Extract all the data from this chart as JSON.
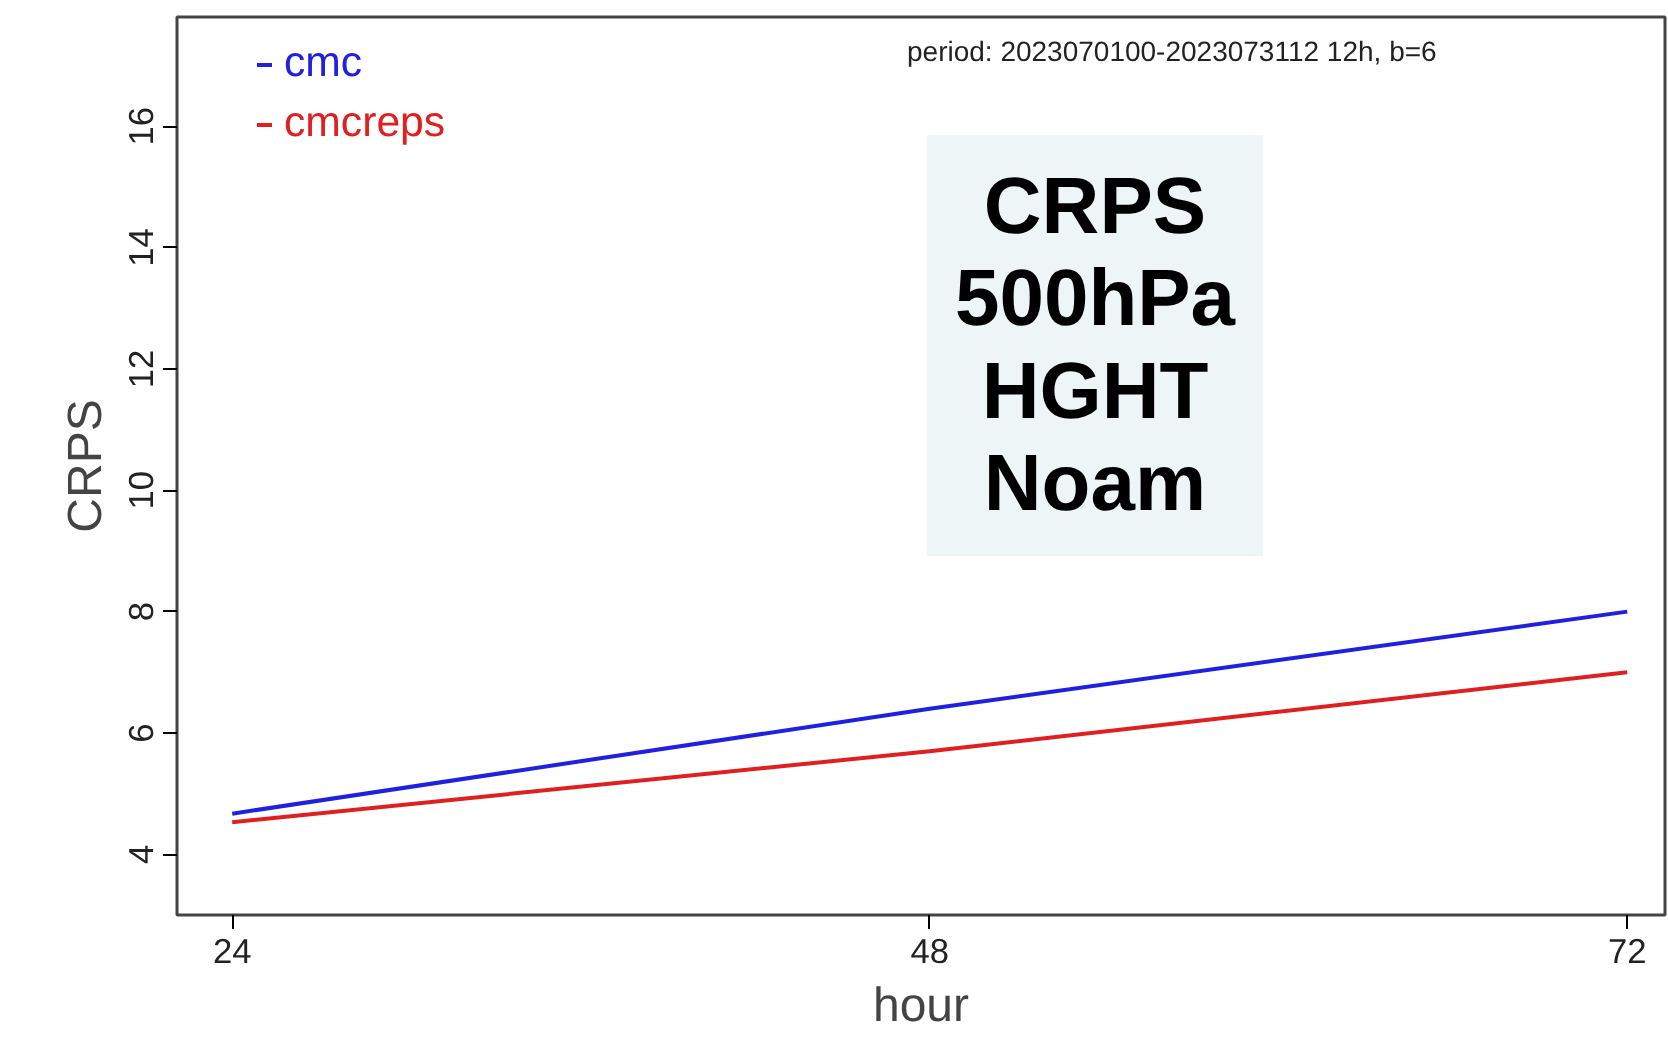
{
  "chart_data": {
    "type": "line",
    "xlabel": "hour",
    "ylabel": "CRPS",
    "x": [
      24,
      48,
      72
    ],
    "series": [
      {
        "name": "cmc",
        "color": "#2020e0",
        "values": [
          4.67,
          6.4,
          8.0
        ]
      },
      {
        "name": "cmcreps",
        "color": "#e02020",
        "values": [
          4.53,
          5.7,
          7.0
        ]
      }
    ],
    "xlim": [
      22.1,
      73.3
    ],
    "xticks": [
      24,
      48,
      72
    ],
    "ylim": [
      3.0,
      17.8
    ],
    "yticks": [
      4,
      6,
      8,
      10,
      12,
      14,
      16
    ],
    "grid": false,
    "legend": "top left",
    "marker": "none",
    "line_style": "solid",
    "annotations": [
      "period: 2023070100-2023073112 12h, b=6",
      "CRPS\n500hPa\nHGHT\nNoam"
    ]
  }
}
